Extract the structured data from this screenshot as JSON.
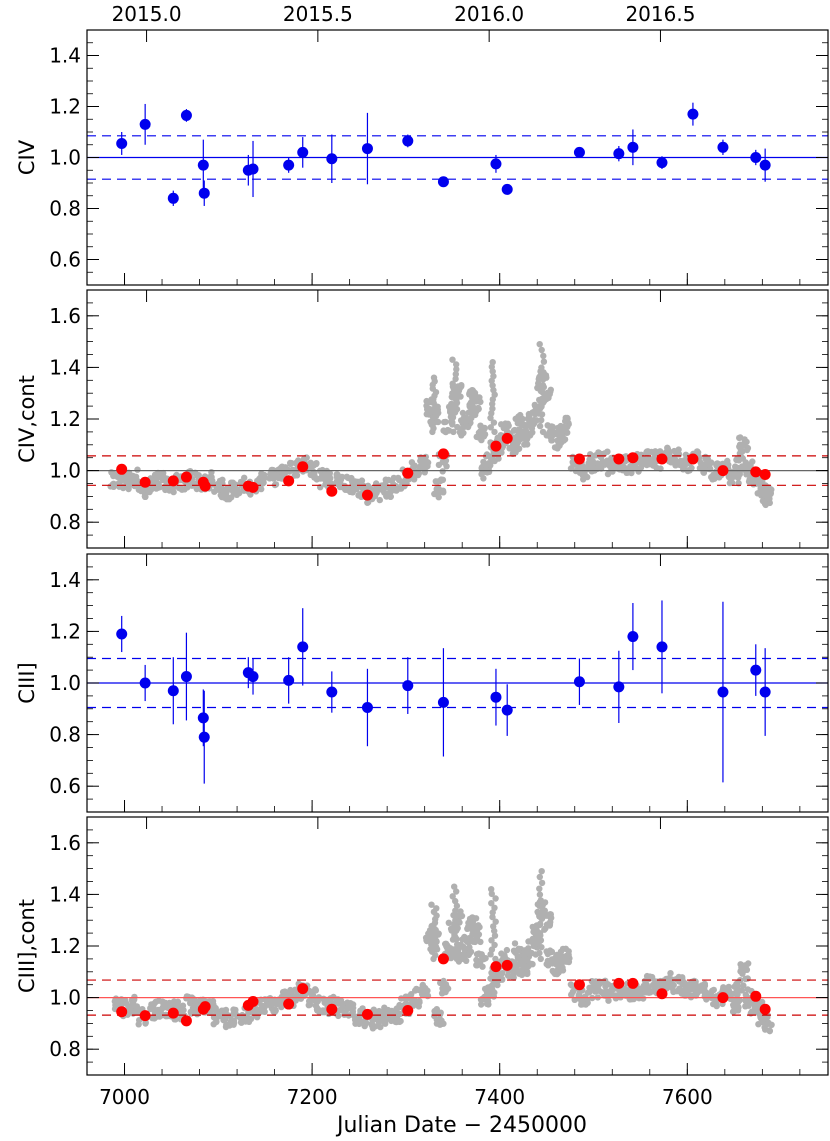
{
  "chart_data": {
    "type": "scatter",
    "xlabel": "Julian Date − 2450000",
    "xlim": [
      6960,
      7750
    ],
    "x_ticks": [
      7000,
      7200,
      7400,
      7600
    ],
    "x_tick_labels": [
      "7000",
      "7200",
      "7400",
      "7600"
    ],
    "top_axis": {
      "ticks": [
        2015.0,
        2015.5,
        2016.0,
        2016.5
      ],
      "tick_labels": [
        "2015.0",
        "2015.5",
        "2016.0",
        "2016.5"
      ]
    },
    "grid": false,
    "colors": {
      "line_points": "#0000ee",
      "cont_points": "#ff0000",
      "cont_background": "#b0b0b0",
      "ref_gray": "#666666",
      "ref_red": "#cc0000"
    },
    "panels": [
      {
        "ylabel": "CIV",
        "ylim": [
          0.5,
          1.5
        ],
        "y_ticks": [
          0.6,
          0.8,
          1.0,
          1.2,
          1.4
        ],
        "y_tick_labels": [
          "0.6",
          "0.8",
          "1.0",
          "1.2",
          "1.4"
        ],
        "ref_lines": {
          "color": "#0000ee",
          "mean": 1.0,
          "lower": 0.915,
          "upper": 1.085
        },
        "series": [
          {
            "marker": "blue-circle",
            "points": [
              {
                "x": 6997,
                "y": 1.055,
                "err": 0.045
              },
              {
                "x": 7022,
                "y": 1.13,
                "err": 0.08
              },
              {
                "x": 7052,
                "y": 0.84,
                "err": 0.03
              },
              {
                "x": 7066,
                "y": 1.165,
                "err": 0.025
              },
              {
                "x": 7084,
                "y": 0.97,
                "err": 0.1
              },
              {
                "x": 7085,
                "y": 0.86,
                "err": 0.05
              },
              {
                "x": 7132,
                "y": 0.95,
                "err": 0.06
              },
              {
                "x": 7137,
                "y": 0.955,
                "err": 0.11
              },
              {
                "x": 7175,
                "y": 0.97,
                "err": 0.03
              },
              {
                "x": 7190,
                "y": 1.02,
                "err": 0.06
              },
              {
                "x": 7221,
                "y": 0.995,
                "err": 0.095
              },
              {
                "x": 7259,
                "y": 1.035,
                "err": 0.14
              },
              {
                "x": 7302,
                "y": 1.065,
                "err": 0.025
              },
              {
                "x": 7340,
                "y": 0.905,
                "err": 0.02
              },
              {
                "x": 7396,
                "y": 0.975,
                "err": 0.035
              },
              {
                "x": 7408,
                "y": 0.875,
                "err": 0.02
              },
              {
                "x": 7485,
                "y": 1.02,
                "err": 0.02
              },
              {
                "x": 7527,
                "y": 1.015,
                "err": 0.03
              },
              {
                "x": 7542,
                "y": 1.04,
                "err": 0.07
              },
              {
                "x": 7573,
                "y": 0.98,
                "err": 0.025
              },
              {
                "x": 7606,
                "y": 1.17,
                "err": 0.045
              },
              {
                "x": 7638,
                "y": 1.04,
                "err": 0.03
              },
              {
                "x": 7673,
                "y": 1.0,
                "err": 0.03
              },
              {
                "x": 7683,
                "y": 0.97,
                "err": 0.065
              }
            ]
          }
        ]
      },
      {
        "ylabel": "CIV,cont",
        "ylim": [
          0.7,
          1.7
        ],
        "y_ticks": [
          0.8,
          1.0,
          1.2,
          1.4,
          1.6
        ],
        "y_tick_labels": [
          "0.8",
          "1.0",
          "1.2",
          "1.4",
          "1.6"
        ],
        "ref_lines": {
          "color": "#666666",
          "dash_color": "#cc0000",
          "mean": 1.0,
          "lower": 0.943,
          "upper": 1.057
        },
        "background_trend": {
          "x": [
            6990,
            7000,
            7010,
            7020,
            7030,
            7040,
            7050,
            7060,
            7070,
            7080,
            7090,
            7100,
            7110,
            7120,
            7130,
            7140,
            7150,
            7160,
            7170,
            7180,
            7190,
            7200,
            7210,
            7220,
            7230,
            7240,
            7250,
            7260,
            7270,
            7280,
            7290,
            7300,
            7310,
            7320,
            7325,
            7330,
            7335,
            7340,
            7345,
            7350,
            7355,
            7360,
            7365,
            7370,
            7375,
            7380,
            7385,
            7390,
            7395,
            7400,
            7405,
            7410,
            7415,
            7420,
            7425,
            7430,
            7435,
            7440,
            7445,
            7450,
            7455,
            7460,
            7465,
            7470,
            7480,
            7490,
            7500,
            7510,
            7520,
            7530,
            7540,
            7550,
            7560,
            7570,
            7580,
            7590,
            7600,
            7610,
            7620,
            7630,
            7640,
            7650,
            7655,
            7660,
            7665,
            7670,
            7675,
            7680,
            7685
          ],
          "y": [
            0.97,
            0.96,
            0.97,
            0.93,
            0.95,
            0.96,
            0.95,
            0.95,
            0.97,
            0.96,
            0.96,
            0.93,
            0.92,
            0.93,
            0.94,
            0.95,
            0.96,
            0.97,
            0.99,
            1.0,
            1.02,
            1.0,
            0.97,
            0.97,
            0.96,
            0.95,
            0.93,
            0.91,
            0.92,
            0.93,
            0.94,
            0.97,
            1.0,
            1.02,
            1.25,
            1.22,
            0.93,
            1.03,
            1.18,
            1.26,
            1.3,
            1.17,
            1.2,
            1.28,
            1.25,
            1.15,
            1.0,
            1.03,
            1.08,
            1.1,
            1.15,
            1.12,
            1.1,
            1.18,
            1.12,
            1.15,
            1.2,
            1.25,
            1.35,
            1.3,
            1.15,
            1.12,
            1.14,
            1.17,
            1.02,
            1.0,
            1.03,
            1.04,
            1.02,
            1.03,
            1.02,
            1.03,
            1.05,
            1.04,
            1.06,
            1.05,
            1.03,
            1.04,
            1.02,
            1.0,
            1.01,
            0.98,
            1.02,
            1.1,
            1.0,
            0.97,
            0.97,
            0.93,
            0.9
          ],
          "spread": 0.035,
          "peaks": [
            1.36,
            1.43,
            1.42,
            1.49
          ]
        },
        "series": [
          {
            "marker": "red-circle",
            "points": [
              {
                "x": 6997,
                "y": 1.005
              },
              {
                "x": 7022,
                "y": 0.955
              },
              {
                "x": 7052,
                "y": 0.96
              },
              {
                "x": 7066,
                "y": 0.975
              },
              {
                "x": 7084,
                "y": 0.955
              },
              {
                "x": 7086,
                "y": 0.94
              },
              {
                "x": 7132,
                "y": 0.94
              },
              {
                "x": 7137,
                "y": 0.935
              },
              {
                "x": 7175,
                "y": 0.96
              },
              {
                "x": 7190,
                "y": 1.015
              },
              {
                "x": 7221,
                "y": 0.92
              },
              {
                "x": 7259,
                "y": 0.905
              },
              {
                "x": 7302,
                "y": 0.99
              },
              {
                "x": 7340,
                "y": 1.065
              },
              {
                "x": 7396,
                "y": 1.095
              },
              {
                "x": 7408,
                "y": 1.125
              },
              {
                "x": 7485,
                "y": 1.045
              },
              {
                "x": 7527,
                "y": 1.045
              },
              {
                "x": 7542,
                "y": 1.05
              },
              {
                "x": 7573,
                "y": 1.045
              },
              {
                "x": 7606,
                "y": 1.045
              },
              {
                "x": 7638,
                "y": 1.0
              },
              {
                "x": 7673,
                "y": 0.995
              },
              {
                "x": 7683,
                "y": 0.985
              }
            ]
          }
        ]
      },
      {
        "ylabel": "CIII]",
        "ylim": [
          0.5,
          1.5
        ],
        "y_ticks": [
          0.6,
          0.8,
          1.0,
          1.2,
          1.4
        ],
        "y_tick_labels": [
          "0.6",
          "0.8",
          "1.0",
          "1.2",
          "1.4"
        ],
        "ref_lines": {
          "color": "#0000ee",
          "mean": 1.0,
          "lower": 0.905,
          "upper": 1.095
        },
        "series": [
          {
            "marker": "blue-circle",
            "points": [
              {
                "x": 6997,
                "y": 1.19,
                "err": 0.07
              },
              {
                "x": 7022,
                "y": 1.0,
                "err": 0.07
              },
              {
                "x": 7052,
                "y": 0.97,
                "err": 0.13
              },
              {
                "x": 7066,
                "y": 1.025,
                "err": 0.17
              },
              {
                "x": 7084,
                "y": 0.865,
                "err": 0.11
              },
              {
                "x": 7085,
                "y": 0.79,
                "err": 0.18
              },
              {
                "x": 7132,
                "y": 1.04,
                "err": 0.06
              },
              {
                "x": 7137,
                "y": 1.025,
                "err": 0.07
              },
              {
                "x": 7175,
                "y": 1.01,
                "err": 0.09
              },
              {
                "x": 7190,
                "y": 1.14,
                "err": 0.15
              },
              {
                "x": 7221,
                "y": 0.965,
                "err": 0.08
              },
              {
                "x": 7259,
                "y": 0.905,
                "err": 0.15
              },
              {
                "x": 7302,
                "y": 0.99,
                "err": 0.11
              },
              {
                "x": 7340,
                "y": 0.925,
                "err": 0.21
              },
              {
                "x": 7396,
                "y": 0.945,
                "err": 0.11
              },
              {
                "x": 7408,
                "y": 0.895,
                "err": 0.1
              },
              {
                "x": 7485,
                "y": 1.005,
                "err": 0.09
              },
              {
                "x": 7527,
                "y": 0.985,
                "err": 0.14
              },
              {
                "x": 7542,
                "y": 1.18,
                "err": 0.13
              },
              {
                "x": 7573,
                "y": 1.14,
                "err": 0.18
              },
              {
                "x": 7638,
                "y": 0.965,
                "err": 0.35
              },
              {
                "x": 7673,
                "y": 1.05,
                "err": 0.1
              },
              {
                "x": 7683,
                "y": 0.965,
                "err": 0.17
              }
            ]
          }
        ]
      },
      {
        "ylabel": "CIII],cont",
        "ylim": [
          0.7,
          1.7
        ],
        "y_ticks": [
          0.8,
          1.0,
          1.2,
          1.4,
          1.6
        ],
        "y_tick_labels": [
          "0.8",
          "1.0",
          "1.2",
          "1.4",
          "1.6"
        ],
        "ref_lines": {
          "color": "#ff5555",
          "dash_color": "#cc0000",
          "mean": 1.0,
          "lower": 0.932,
          "upper": 1.068
        },
        "background_trend": {
          "x": [
            6990,
            7000,
            7010,
            7020,
            7030,
            7040,
            7050,
            7060,
            7070,
            7080,
            7090,
            7100,
            7110,
            7120,
            7130,
            7140,
            7150,
            7160,
            7170,
            7180,
            7190,
            7200,
            7210,
            7220,
            7230,
            7240,
            7250,
            7260,
            7270,
            7280,
            7290,
            7300,
            7310,
            7320,
            7325,
            7330,
            7335,
            7340,
            7345,
            7350,
            7355,
            7360,
            7365,
            7370,
            7375,
            7380,
            7385,
            7390,
            7395,
            7400,
            7405,
            7410,
            7415,
            7420,
            7425,
            7430,
            7435,
            7440,
            7445,
            7450,
            7455,
            7460,
            7465,
            7470,
            7480,
            7490,
            7500,
            7510,
            7520,
            7530,
            7540,
            7550,
            7560,
            7570,
            7580,
            7590,
            7600,
            7610,
            7620,
            7630,
            7640,
            7650,
            7655,
            7660,
            7665,
            7670,
            7675,
            7680,
            7685
          ],
          "y": [
            0.97,
            0.96,
            0.97,
            0.93,
            0.95,
            0.96,
            0.95,
            0.95,
            0.97,
            0.96,
            0.96,
            0.93,
            0.92,
            0.93,
            0.94,
            0.95,
            0.96,
            0.97,
            0.99,
            1.0,
            1.02,
            1.0,
            0.97,
            0.97,
            0.96,
            0.95,
            0.93,
            0.91,
            0.92,
            0.93,
            0.94,
            0.97,
            1.0,
            1.02,
            1.25,
            1.22,
            0.93,
            1.03,
            1.18,
            1.26,
            1.3,
            1.17,
            1.2,
            1.28,
            1.25,
            1.15,
            1.0,
            1.03,
            1.08,
            1.1,
            1.15,
            1.12,
            1.1,
            1.18,
            1.12,
            1.15,
            1.2,
            1.25,
            1.35,
            1.3,
            1.15,
            1.12,
            1.14,
            1.17,
            1.02,
            1.0,
            1.03,
            1.04,
            1.02,
            1.03,
            1.02,
            1.03,
            1.05,
            1.04,
            1.06,
            1.05,
            1.03,
            1.04,
            1.02,
            1.0,
            1.01,
            0.98,
            1.02,
            1.1,
            1.0,
            0.97,
            0.97,
            0.93,
            0.9
          ],
          "spread": 0.035,
          "peaks": [
            1.36,
            1.43,
            1.42,
            1.49
          ]
        },
        "series": [
          {
            "marker": "red-circle",
            "points": [
              {
                "x": 6997,
                "y": 0.945
              },
              {
                "x": 7022,
                "y": 0.93
              },
              {
                "x": 7052,
                "y": 0.94
              },
              {
                "x": 7066,
                "y": 0.91
              },
              {
                "x": 7084,
                "y": 0.955
              },
              {
                "x": 7086,
                "y": 0.965
              },
              {
                "x": 7132,
                "y": 0.97
              },
              {
                "x": 7137,
                "y": 0.985
              },
              {
                "x": 7175,
                "y": 0.975
              },
              {
                "x": 7190,
                "y": 1.035
              },
              {
                "x": 7221,
                "y": 0.955
              },
              {
                "x": 7259,
                "y": 0.935
              },
              {
                "x": 7302,
                "y": 0.95
              },
              {
                "x": 7340,
                "y": 1.15
              },
              {
                "x": 7396,
                "y": 1.12
              },
              {
                "x": 7408,
                "y": 1.125
              },
              {
                "x": 7485,
                "y": 1.05
              },
              {
                "x": 7527,
                "y": 1.055
              },
              {
                "x": 7542,
                "y": 1.055
              },
              {
                "x": 7573,
                "y": 1.015
              },
              {
                "x": 7638,
                "y": 1.0
              },
              {
                "x": 7673,
                "y": 1.005
              },
              {
                "x": 7683,
                "y": 0.955
              }
            ]
          }
        ]
      }
    ]
  }
}
